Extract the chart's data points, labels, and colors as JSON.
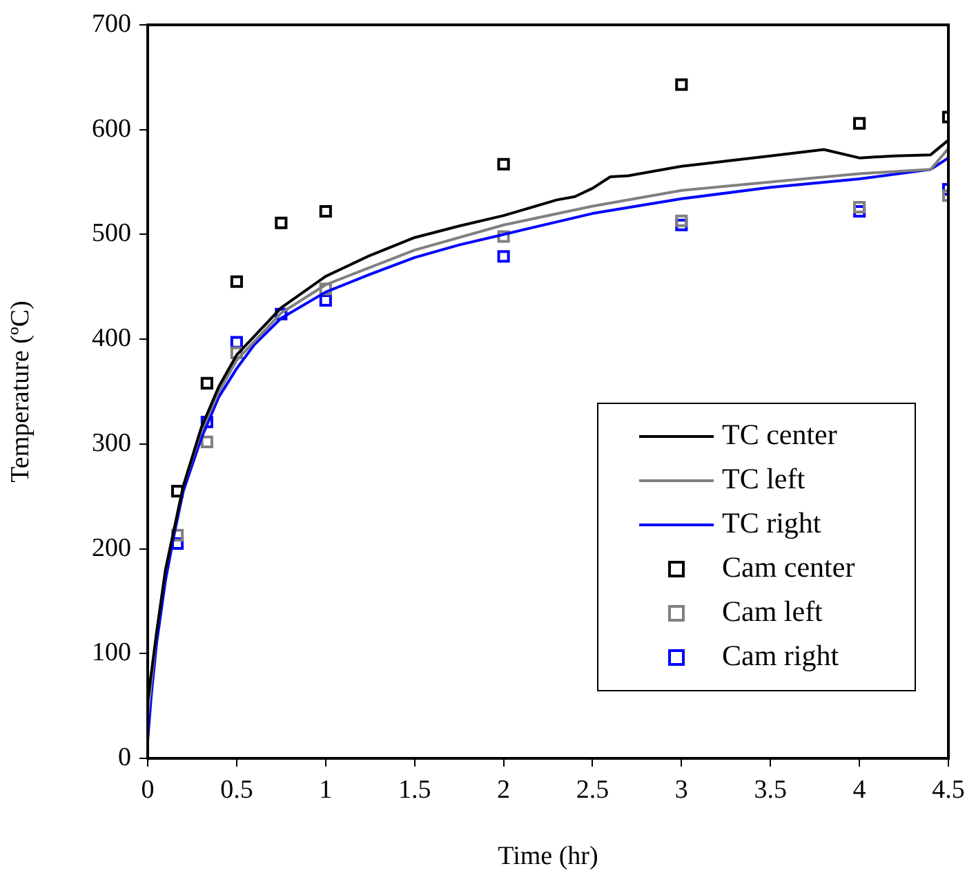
{
  "chart_data": {
    "type": "line",
    "xlabel": "Time (hr)",
    "ylabel": "Temperature (ºC)",
    "xlim": [
      0,
      4.5
    ],
    "xticks": [
      0,
      0.5,
      1,
      1.5,
      2,
      2.5,
      3,
      3.5,
      4,
      4.5
    ],
    "ylim": [
      0,
      700
    ],
    "yticks": [
      0,
      100,
      200,
      300,
      400,
      500,
      600,
      700
    ],
    "grid": false,
    "legend": "bottom right",
    "series": [
      {
        "name": "TC center",
        "type": "line",
        "marker": "none",
        "color": "#000000",
        "x": [
          0,
          0.05,
          0.1,
          0.2,
          0.3,
          0.4,
          0.5,
          0.75,
          1,
          1.25,
          1.5,
          1.75,
          2,
          2.3,
          2.4,
          2.5,
          2.6,
          2.7,
          3,
          3.25,
          3.5,
          3.8,
          4,
          4.2,
          4.4,
          4.5
        ],
        "values": [
          55,
          120,
          180,
          260,
          315,
          355,
          385,
          430,
          460,
          480,
          497,
          508,
          518,
          533,
          536,
          544,
          555,
          556,
          565,
          570,
          575,
          581,
          573,
          575,
          576,
          590
        ]
      },
      {
        "name": "TC left",
        "type": "line",
        "marker": "none",
        "color": "#808080",
        "x": [
          0,
          0.05,
          0.1,
          0.2,
          0.3,
          0.4,
          0.5,
          0.75,
          1,
          1.5,
          2,
          2.5,
          3,
          3.5,
          4,
          4.4,
          4.5
        ],
        "values": [
          40,
          120,
          180,
          260,
          312,
          350,
          380,
          425,
          452,
          485,
          509,
          527,
          542,
          550,
          558,
          562,
          582
        ]
      },
      {
        "name": "TC right",
        "type": "line",
        "marker": "none",
        "color": "#0000ff",
        "x": [
          0,
          0.02,
          0.05,
          0.1,
          0.15,
          0.2,
          0.3,
          0.4,
          0.5,
          0.6,
          0.75,
          1,
          1.25,
          1.5,
          1.75,
          2,
          2.5,
          3,
          3.5,
          4,
          4.4,
          4.5
        ],
        "values": [
          17,
          60,
          110,
          170,
          215,
          255,
          305,
          345,
          372,
          395,
          420,
          445,
          462,
          478,
          490,
          500,
          520,
          534,
          545,
          553,
          562,
          573
        ]
      },
      {
        "name": "Cam center",
        "type": "scatter",
        "marker": "square",
        "color": "#000000",
        "x": [
          0.167,
          0.333,
          0.5,
          0.75,
          1,
          2,
          3,
          4,
          4.5
        ],
        "values": [
          255,
          358,
          455,
          511,
          522,
          567,
          643,
          606,
          612
        ]
      },
      {
        "name": "Cam left",
        "type": "scatter",
        "marker": "square",
        "color": "#808080",
        "x": [
          0.167,
          0.333,
          0.5,
          0.75,
          1,
          2,
          3,
          4,
          4.5
        ],
        "values": [
          213,
          302,
          387,
          null,
          448,
          498,
          513,
          526,
          537
        ]
      },
      {
        "name": "Cam right",
        "type": "scatter",
        "marker": "square",
        "color": "#0000ff",
        "x": [
          0.167,
          0.333,
          0.5,
          0.75,
          1,
          2,
          3,
          4,
          4.5
        ],
        "values": [
          205,
          321,
          397,
          424,
          437,
          479,
          509,
          522,
          543
        ]
      }
    ]
  }
}
